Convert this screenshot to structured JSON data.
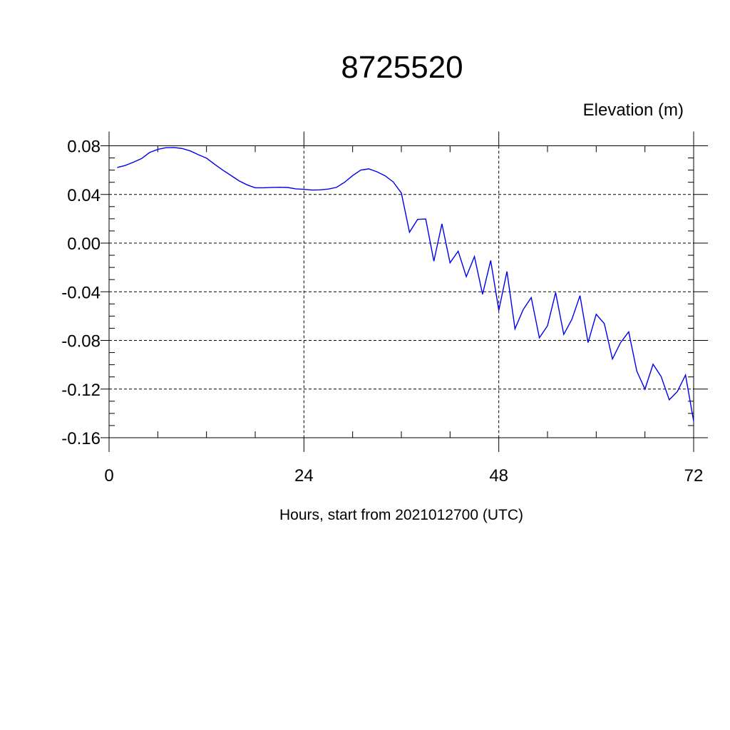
{
  "chart_data": {
    "type": "line",
    "title": "8725520",
    "ylabel": "Elevation (m)",
    "xlabel": "Hours, start from 2021012700 (UTC)",
    "xlim": [
      0,
      72
    ],
    "ylim": [
      -0.16,
      0.08
    ],
    "x_ticks": [
      0,
      24,
      48,
      72
    ],
    "x_tick_labels": [
      "0",
      "24",
      "48",
      "72"
    ],
    "y_ticks": [
      0.08,
      0.04,
      0.0,
      -0.04,
      -0.08,
      -0.12,
      -0.16
    ],
    "y_tick_labels": [
      "0.08",
      "0.04",
      "0.00",
      "-0.04",
      "-0.08",
      "-0.12",
      "-0.16"
    ],
    "grid": true,
    "series_color": "#0000ee",
    "series": [
      {
        "x": [
          1,
          2,
          3,
          4,
          5,
          6,
          7,
          8,
          9,
          10,
          11,
          12,
          13,
          14,
          15,
          16,
          17,
          18,
          19,
          20,
          21,
          22,
          23,
          24,
          25,
          26,
          27,
          28,
          29,
          30,
          31,
          32,
          33,
          34,
          35,
          36,
          37,
          38,
          39,
          40,
          41,
          42,
          43,
          44,
          45,
          46,
          47,
          48,
          49,
          50,
          51,
          52,
          53,
          54,
          55,
          56,
          57,
          58,
          59,
          60,
          61,
          62,
          63,
          64,
          65,
          66,
          67,
          68,
          69,
          70,
          71,
          72
        ],
        "values": [
          0.0622,
          0.0638,
          0.0665,
          0.0695,
          0.0745,
          0.077,
          0.0784,
          0.0786,
          0.0778,
          0.0758,
          0.0727,
          0.0698,
          0.0648,
          0.06,
          0.0557,
          0.0512,
          0.0479,
          0.0455,
          0.0455,
          0.0458,
          0.0459,
          0.0457,
          0.0446,
          0.0442,
          0.0436,
          0.0438,
          0.0444,
          0.0458,
          0.05,
          0.0555,
          0.0601,
          0.061,
          0.0586,
          0.0553,
          0.0503,
          0.0412,
          0.0089,
          0.0195,
          0.0198,
          -0.0149,
          0.0158,
          -0.0162,
          -0.0066,
          -0.0276,
          -0.0111,
          -0.0421,
          -0.0143,
          -0.0553,
          -0.0233,
          -0.0705,
          -0.0548,
          -0.0448,
          -0.0779,
          -0.068,
          -0.0407,
          -0.0751,
          -0.0627,
          -0.0432,
          -0.0818,
          -0.0585,
          -0.0662,
          -0.0953,
          -0.0818,
          -0.0729,
          -0.1053,
          -0.1201,
          -0.0996,
          -0.1097,
          -0.1288,
          -0.122,
          -0.1085,
          -0.1464
        ]
      }
    ]
  }
}
